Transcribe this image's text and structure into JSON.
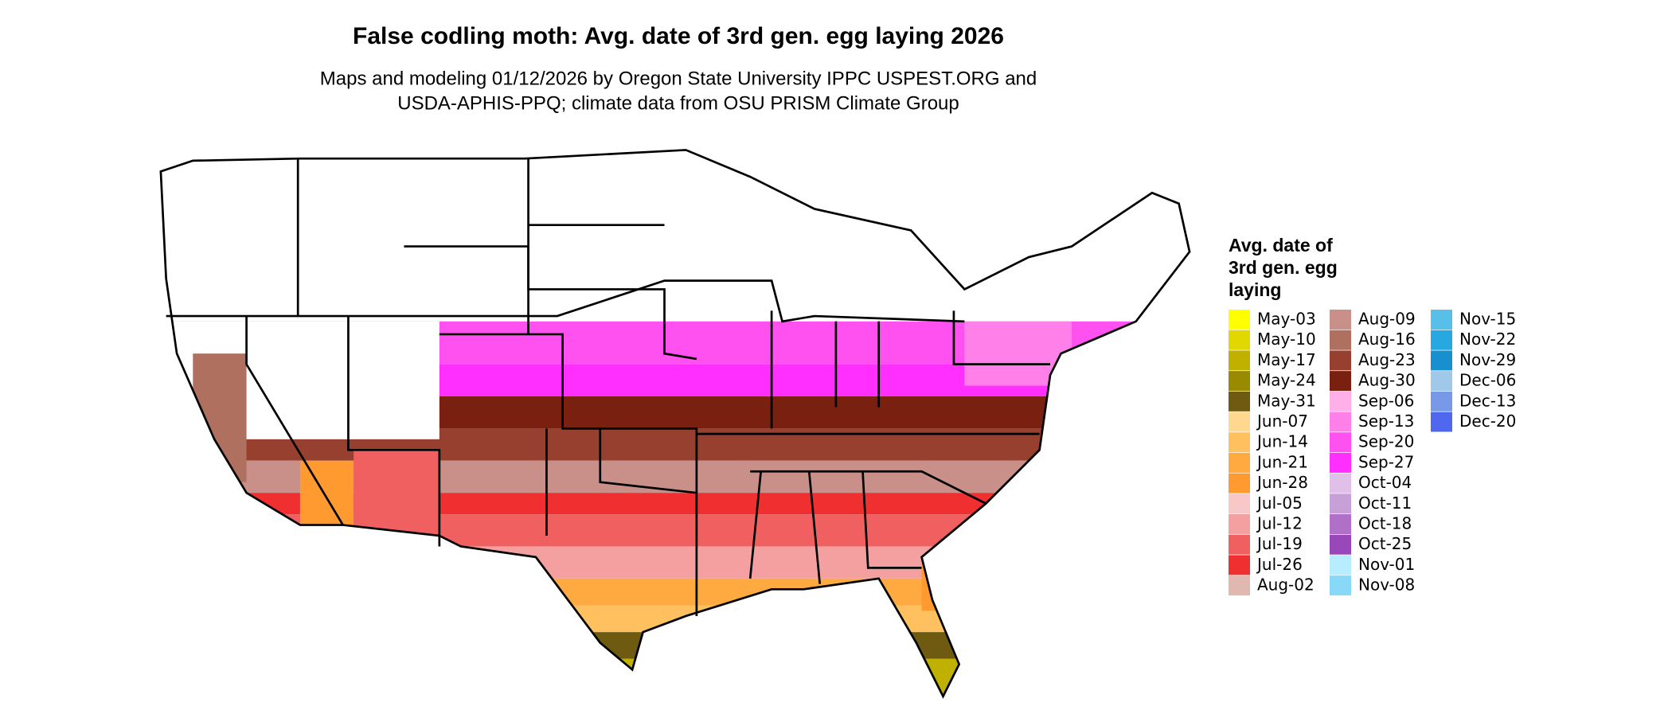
{
  "header": {
    "title": "False codling moth: Avg. date of 3rd gen. egg laying 2026",
    "subtitle_lines": [
      "Maps and modeling 01/12/2026 by Oregon State University IPPC USPEST.ORG and",
      "USDA-APHIS-PPQ; climate data from OSU PRISM Climate Group"
    ]
  },
  "legend": {
    "title_lines": [
      "Avg. date of",
      "3rd gen. egg",
      "laying"
    ],
    "items": [
      {
        "label": "May-03",
        "color": "#ffff00"
      },
      {
        "label": "May-10",
        "color": "#e0d800"
      },
      {
        "label": "May-17",
        "color": "#c0b000"
      },
      {
        "label": "May-24",
        "color": "#9a8a00"
      },
      {
        "label": "May-31",
        "color": "#6e5a10"
      },
      {
        "label": "Jun-07",
        "color": "#ffd890"
      },
      {
        "label": "Jun-14",
        "color": "#ffc060"
      },
      {
        "label": "Jun-21",
        "color": "#ffaa40"
      },
      {
        "label": "Jun-28",
        "color": "#ff9a30"
      },
      {
        "label": "Jul-05",
        "color": "#f8c8c8"
      },
      {
        "label": "Jul-12",
        "color": "#f4a0a0"
      },
      {
        "label": "Jul-19",
        "color": "#f06060"
      },
      {
        "label": "Jul-26",
        "color": "#f03030"
      },
      {
        "label": "Aug-02",
        "color": "#e0b8b0"
      },
      {
        "label": "Aug-09",
        "color": "#c89088"
      },
      {
        "label": "Aug-16",
        "color": "#b07060"
      },
      {
        "label": "Aug-23",
        "color": "#984030"
      },
      {
        "label": "Aug-30",
        "color": "#7a2010"
      },
      {
        "label": "Sep-06",
        "color": "#ffb0e8"
      },
      {
        "label": "Sep-13",
        "color": "#ff80e8"
      },
      {
        "label": "Sep-20",
        "color": "#ff50f0"
      },
      {
        "label": "Sep-27",
        "color": "#ff30ff"
      },
      {
        "label": "Oct-04",
        "color": "#e0c0e8"
      },
      {
        "label": "Oct-11",
        "color": "#c8a0d8"
      },
      {
        "label": "Oct-18",
        "color": "#b070c8"
      },
      {
        "label": "Oct-25",
        "color": "#9848b8"
      },
      {
        "label": "Nov-01",
        "color": "#b8ecff"
      },
      {
        "label": "Nov-08",
        "color": "#88d8f8"
      },
      {
        "label": "Nov-15",
        "color": "#58c0e8"
      },
      {
        "label": "Nov-22",
        "color": "#28a8e0"
      },
      {
        "label": "Nov-29",
        "color": "#1890d0"
      },
      {
        "label": "Dec-06",
        "color": "#a0c8e8"
      },
      {
        "label": "Dec-13",
        "color": "#7898e8"
      },
      {
        "label": "Dec-20",
        "color": "#5068f0"
      }
    ]
  }
}
